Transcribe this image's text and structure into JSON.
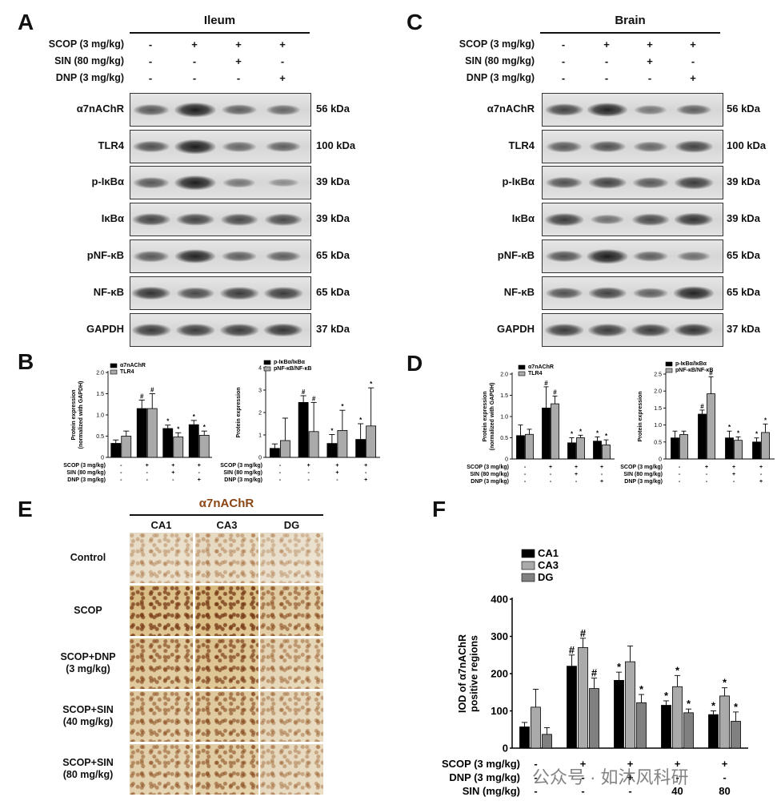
{
  "panels": {
    "A": {
      "letter": "A",
      "tissue": "Ileum",
      "conditions": [
        {
          "label": "SCOP (3 mg/kg)",
          "signs": [
            "-",
            "+",
            "+",
            "+"
          ]
        },
        {
          "label": "SIN (80 mg/kg)",
          "signs": [
            "-",
            "-",
            "+",
            "-"
          ]
        },
        {
          "label": "DNP (3 mg/kg)",
          "signs": [
            "-",
            "-",
            "-",
            "+"
          ]
        }
      ],
      "rows": [
        {
          "protein": "α7nAChR",
          "kda": "56 kDa",
          "intensity": [
            0.55,
            0.95,
            0.5,
            0.45
          ]
        },
        {
          "protein": "TLR4",
          "kda": "100 kDa",
          "intensity": [
            0.6,
            0.95,
            0.45,
            0.5
          ]
        },
        {
          "protein": "p-IκBα",
          "kda": "39 kDa",
          "intensity": [
            0.55,
            0.95,
            0.35,
            0.2
          ]
        },
        {
          "protein": "IκBα",
          "kda": "39 kDa",
          "intensity": [
            0.7,
            0.7,
            0.65,
            0.65
          ]
        },
        {
          "protein": "pNF-κB",
          "kda": "65 kDa",
          "intensity": [
            0.55,
            0.9,
            0.5,
            0.5
          ]
        },
        {
          "protein": "NF-κB",
          "kda": "65 kDa",
          "intensity": [
            0.8,
            0.65,
            0.75,
            0.75
          ]
        },
        {
          "protein": "GAPDH",
          "kda": "37 kDa",
          "intensity": [
            0.75,
            0.75,
            0.75,
            0.8
          ]
        }
      ]
    },
    "C": {
      "letter": "C",
      "tissue": "Brain",
      "conditions": [
        {
          "label": "SCOP (3 mg/kg)",
          "signs": [
            "-",
            "+",
            "+",
            "+"
          ]
        },
        {
          "label": "SIN (80 mg/kg)",
          "signs": [
            "-",
            "-",
            "+",
            "-"
          ]
        },
        {
          "label": "DNP (3 mg/kg)",
          "signs": [
            "-",
            "-",
            "-",
            "+"
          ]
        }
      ],
      "rows": [
        {
          "protein": "α7nAChR",
          "kda": "56 kDa",
          "intensity": [
            0.7,
            0.9,
            0.35,
            0.5
          ]
        },
        {
          "protein": "TLR4",
          "kda": "100 kDa",
          "intensity": [
            0.55,
            0.6,
            0.45,
            0.7
          ]
        },
        {
          "protein": "p-IκBα",
          "kda": "39 kDa",
          "intensity": [
            0.6,
            0.7,
            0.55,
            0.75
          ]
        },
        {
          "protein": "IκBα",
          "kda": "39 kDa",
          "intensity": [
            0.75,
            0.4,
            0.65,
            0.8
          ]
        },
        {
          "protein": "pNF-κB",
          "kda": "65 kDa",
          "intensity": [
            0.6,
            0.95,
            0.5,
            0.4
          ]
        },
        {
          "protein": "NF-κB",
          "kda": "65 kDa",
          "intensity": [
            0.6,
            0.7,
            0.5,
            0.9
          ]
        },
        {
          "protein": "GAPDH",
          "kda": "37 kDa",
          "intensity": [
            0.75,
            0.75,
            0.75,
            0.8
          ]
        }
      ]
    },
    "B": {
      "letter": "B"
    },
    "D": {
      "letter": "D"
    },
    "E": {
      "letter": "E",
      "title": "α7nAChR",
      "title_color": "#8B4513",
      "columns": [
        "CA1",
        "CA3",
        "DG"
      ],
      "rows": [
        "Control",
        "SCOP",
        "SCOP+DNP\n(3 mg/kg)",
        "SCOP+SIN\n(40 mg/kg)",
        "SCOP+SIN\n(80 mg/kg)"
      ],
      "stain_level": [
        [
          0.1,
          0.15,
          0.05
        ],
        [
          0.8,
          0.85,
          0.5
        ],
        [
          0.6,
          0.7,
          0.3
        ],
        [
          0.45,
          0.55,
          0.25
        ],
        [
          0.4,
          0.5,
          0.2
        ]
      ]
    },
    "F": {
      "letter": "F"
    }
  },
  "chart_data": [
    {
      "panel": "B",
      "type": "bar",
      "series": [
        {
          "name": "α7nAChR",
          "color": "#000000",
          "values": [
            0.33,
            1.15,
            0.68,
            0.77
          ],
          "errors": [
            0.08,
            0.2,
            0.08,
            0.1
          ],
          "sig": [
            "",
            "#",
            "*",
            "*"
          ]
        },
        {
          "name": "TLR4",
          "color": "#aaaaaa",
          "values": [
            0.5,
            1.15,
            0.48,
            0.52
          ],
          "errors": [
            0.12,
            0.35,
            0.1,
            0.1
          ],
          "sig": [
            "",
            "#",
            "*",
            "*"
          ]
        }
      ],
      "ylabel": "Protein expression\n(normalized with GAPDH)",
      "ylim": [
        0,
        2
      ],
      "yticks": [
        0,
        0.5,
        1.0,
        1.5,
        2.0
      ],
      "ytick_labels": [
        "0",
        "0.5",
        "1.0",
        "1.5",
        "2.0"
      ],
      "conditions": [
        {
          "label": "SCOP (3 mg/kg)",
          "signs": [
            "-",
            "+",
            "+",
            "+"
          ]
        },
        {
          "label": "SIN (80 mg/kg)",
          "signs": [
            "-",
            "-",
            "+",
            "-"
          ]
        },
        {
          "label": "DNP (3 mg/kg)",
          "signs": [
            "-",
            "-",
            "-",
            "+"
          ]
        }
      ]
    },
    {
      "panel": "B2",
      "type": "bar",
      "series": [
        {
          "name": "p-IκBα/IκBα",
          "color": "#000000",
          "values": [
            0.4,
            2.45,
            0.62,
            0.8
          ],
          "errors": [
            0.2,
            0.3,
            0.4,
            0.7
          ],
          "sig": [
            "",
            "#",
            "*",
            "*"
          ]
        },
        {
          "name": "pNF-κB/NF-κB",
          "color": "#aaaaaa",
          "values": [
            0.75,
            1.15,
            1.2,
            1.4
          ],
          "errors": [
            1.0,
            1.3,
            0.9,
            1.7
          ],
          "sig": [
            "",
            "#",
            "*",
            "*"
          ]
        }
      ],
      "ylabel": "Protein expression",
      "ylim": [
        0,
        4
      ],
      "yticks": [
        0,
        1,
        2,
        3,
        4
      ],
      "ytick_labels": [
        "0",
        "1",
        "2",
        "3",
        "4"
      ],
      "conditions": [
        {
          "label": "SCOP (3 mg/kg)",
          "signs": [
            "-",
            "+",
            "+",
            "+"
          ]
        },
        {
          "label": "SIN (80 mg/kg)",
          "signs": [
            "-",
            "-",
            "+",
            "-"
          ]
        },
        {
          "label": "DNP (3 mg/kg)",
          "signs": [
            "-",
            "-",
            "-",
            "+"
          ]
        }
      ]
    },
    {
      "panel": "D",
      "type": "bar",
      "series": [
        {
          "name": "α7nAChR",
          "color": "#000000",
          "values": [
            0.55,
            1.2,
            0.38,
            0.42
          ],
          "errors": [
            0.25,
            0.5,
            0.12,
            0.1
          ],
          "sig": [
            "",
            "#",
            "*",
            "*"
          ]
        },
        {
          "name": "TLR4",
          "color": "#aaaaaa",
          "values": [
            0.58,
            1.3,
            0.5,
            0.33
          ],
          "errors": [
            0.12,
            0.18,
            0.06,
            0.12
          ],
          "sig": [
            "",
            "#",
            "*",
            "*"
          ]
        }
      ],
      "ylabel": "Protein expression\n(normalized with GAPDH)",
      "ylim": [
        0,
        2
      ],
      "yticks": [
        0,
        0.5,
        1.0,
        1.5,
        2.0
      ],
      "ytick_labels": [
        "0",
        "0.5",
        "1.0",
        "1.5",
        "2.0"
      ],
      "conditions": [
        {
          "label": "SCOP (3 mg/kg)",
          "signs": [
            "-",
            "+",
            "+",
            "+"
          ]
        },
        {
          "label": "SIN (80 mg/kg)",
          "signs": [
            "-",
            "-",
            "+",
            "-"
          ]
        },
        {
          "label": "DNP (3 mg/kg)",
          "signs": [
            "-",
            "-",
            "-",
            "+"
          ]
        }
      ]
    },
    {
      "panel": "D2",
      "type": "bar",
      "series": [
        {
          "name": "p-IκBα/IκBα",
          "color": "#000000",
          "values": [
            0.62,
            1.32,
            0.62,
            0.5
          ],
          "errors": [
            0.2,
            0.12,
            0.2,
            0.12
          ],
          "sig": [
            "",
            "#",
            "*",
            "*"
          ]
        },
        {
          "name": "pNF-κB/NF-κB",
          "color": "#aaaaaa",
          "values": [
            0.72,
            1.92,
            0.55,
            0.78
          ],
          "errors": [
            0.1,
            0.5,
            0.1,
            0.25
          ],
          "sig": [
            "",
            "#",
            "*",
            "*"
          ]
        }
      ],
      "ylabel": "Protein expression",
      "ylim": [
        0,
        2.5
      ],
      "yticks": [
        0,
        0.5,
        1.0,
        1.5,
        2.0,
        2.5
      ],
      "ytick_labels": [
        "0",
        "0.5",
        "1.0",
        "1.5",
        "2.0",
        "2.5"
      ],
      "conditions": [
        {
          "label": "SCOP (3 mg/kg)",
          "signs": [
            "-",
            "+",
            "+",
            "+"
          ]
        },
        {
          "label": "SIN (80 mg/kg)",
          "signs": [
            "-",
            "-",
            "+",
            "-"
          ]
        },
        {
          "label": "DNP (3 mg/kg)",
          "signs": [
            "-",
            "-",
            "-",
            "+"
          ]
        }
      ]
    },
    {
      "panel": "F",
      "type": "bar",
      "series": [
        {
          "name": "CA1",
          "color": "#000000",
          "values": [
            57,
            220,
            182,
            115,
            90
          ],
          "errors": [
            12,
            30,
            22,
            12,
            10
          ],
          "sig": [
            "",
            "#",
            "*",
            "*",
            "*"
          ]
        },
        {
          "name": "CA3",
          "color": "#aaaaaa",
          "values": [
            110,
            270,
            232,
            165,
            140
          ],
          "errors": [
            48,
            25,
            42,
            30,
            22
          ],
          "sig": [
            "",
            "#",
            "",
            "*",
            "*"
          ]
        },
        {
          "name": "DG",
          "color": "#808080",
          "values": [
            37,
            160,
            122,
            95,
            72
          ],
          "errors": [
            18,
            28,
            22,
            10,
            25
          ],
          "sig": [
            "",
            "#",
            "*",
            "*",
            "*"
          ]
        }
      ],
      "ylabel": "IOD of α7nAChR\npositive regions",
      "ylim": [
        0,
        400
      ],
      "yticks": [
        0,
        100,
        200,
        300,
        400
      ],
      "ytick_labels": [
        "0",
        "100",
        "200",
        "300",
        "400"
      ],
      "conditions": [
        {
          "label": "SCOP (3 mg/kg)",
          "signs": [
            "-",
            "+",
            "+",
            "+",
            "+"
          ]
        },
        {
          "label": "DNP (3 mg/kg)",
          "signs": [
            "-",
            "-",
            "+",
            "-",
            "-"
          ]
        },
        {
          "label": "SIN (mg/kg)",
          "signs": [
            "-",
            "-",
            "-",
            "40",
            "80"
          ]
        }
      ]
    }
  ],
  "watermark": {
    "text": "公众号 · 如沐风科研"
  }
}
